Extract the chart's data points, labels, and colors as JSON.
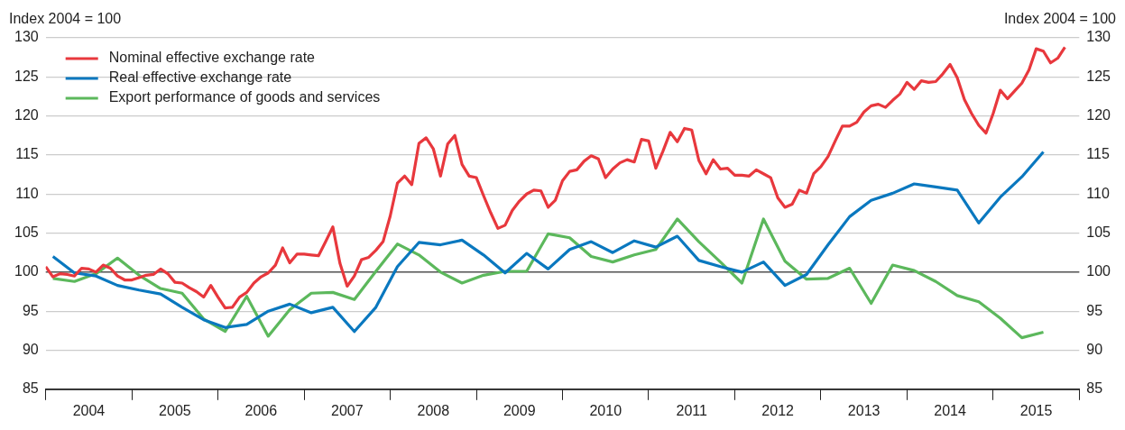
{
  "chart_data": {
    "type": "line",
    "ylabel": "Index 2004 = 100",
    "y2label": "Index 2004 = 100",
    "xlim": [
      "2004-01",
      "2016-01"
    ],
    "xticks": [
      {
        "value": "2004-01",
        "label": null
      },
      {
        "value": "2004-07",
        "label": "2004"
      },
      {
        "value": "2005-01",
        "label": null
      },
      {
        "value": "2005-07",
        "label": "2005"
      },
      {
        "value": "2006-01",
        "label": null
      },
      {
        "value": "2006-07",
        "label": "2006"
      },
      {
        "value": "2007-01",
        "label": null
      },
      {
        "value": "2007-07",
        "label": "2007"
      },
      {
        "value": "2008-01",
        "label": null
      },
      {
        "value": "2008-07",
        "label": "2008"
      },
      {
        "value": "2009-01",
        "label": null
      },
      {
        "value": "2009-07",
        "label": "2009"
      },
      {
        "value": "2010-01",
        "label": null
      },
      {
        "value": "2010-07",
        "label": "2010"
      },
      {
        "value": "2011-01",
        "label": null
      },
      {
        "value": "2011-07",
        "label": "2011"
      },
      {
        "value": "2012-01",
        "label": null
      },
      {
        "value": "2012-07",
        "label": "2012"
      },
      {
        "value": "2013-01",
        "label": null
      },
      {
        "value": "2013-07",
        "label": "2013"
      },
      {
        "value": "2014-01",
        "label": null
      },
      {
        "value": "2014-07",
        "label": "2014"
      },
      {
        "value": "2015-01",
        "label": null
      },
      {
        "value": "2015-07",
        "label": "2015"
      },
      {
        "value": "2016-01",
        "label": null
      }
    ],
    "ylim": [
      85,
      130
    ],
    "yticks": [
      85,
      90,
      95,
      100,
      105,
      110,
      115,
      120,
      125,
      130
    ],
    "y2lim": [
      85,
      130
    ],
    "y2ticks": [
      85,
      90,
      95,
      100,
      105,
      110,
      115,
      120,
      125,
      130
    ],
    "grid": "y",
    "legend": "top left",
    "marker": "none",
    "line_style": "solid",
    "ref_lines": [
      {
        "axis": "y",
        "value": 100,
        "color": "#555555"
      }
    ],
    "series": [
      {
        "name": "Nominal effective exchange rate",
        "color": "#e8383d",
        "x": [
          "2004-01",
          "2004-02",
          "2004-03",
          "2004-04",
          "2004-05",
          "2004-06",
          "2004-07",
          "2004-08",
          "2004-09",
          "2004-10",
          "2004-11",
          "2004-12",
          "2005-01",
          "2005-02",
          "2005-03",
          "2005-04",
          "2005-05",
          "2005-06",
          "2005-07",
          "2005-08",
          "2005-09",
          "2005-10",
          "2005-11",
          "2005-12",
          "2006-01",
          "2006-02",
          "2006-03",
          "2006-04",
          "2006-05",
          "2006-06",
          "2006-07",
          "2006-08",
          "2006-09",
          "2006-10",
          "2006-11",
          "2006-12",
          "2007-01",
          "2007-02",
          "2007-03",
          "2007-04",
          "2007-05",
          "2007-06",
          "2007-07",
          "2007-08",
          "2007-09",
          "2007-10",
          "2007-11",
          "2007-12",
          "2008-01",
          "2008-02",
          "2008-03",
          "2008-04",
          "2008-05",
          "2008-06",
          "2008-07",
          "2008-08",
          "2008-09",
          "2008-10",
          "2008-11",
          "2008-12",
          "2009-01",
          "2009-02",
          "2009-03",
          "2009-04",
          "2009-05",
          "2009-06",
          "2009-07",
          "2009-08",
          "2009-09",
          "2009-10",
          "2009-11",
          "2009-12",
          "2010-01",
          "2010-02",
          "2010-03",
          "2010-04",
          "2010-05",
          "2010-06",
          "2010-07",
          "2010-08",
          "2010-09",
          "2010-10",
          "2010-11",
          "2010-12",
          "2011-01",
          "2011-02",
          "2011-03",
          "2011-04",
          "2011-05",
          "2011-06",
          "2011-07",
          "2011-08",
          "2011-09",
          "2011-10",
          "2011-11",
          "2011-12",
          "2012-01",
          "2012-02",
          "2012-03",
          "2012-04",
          "2012-05",
          "2012-06",
          "2012-07",
          "2012-08",
          "2012-09",
          "2012-10",
          "2012-11",
          "2012-12",
          "2013-01",
          "2013-02",
          "2013-03",
          "2013-04",
          "2013-05",
          "2013-06",
          "2013-07",
          "2013-08",
          "2013-09",
          "2013-10",
          "2013-11",
          "2013-12",
          "2014-01",
          "2014-02",
          "2014-03",
          "2014-04",
          "2014-05",
          "2014-06",
          "2014-07",
          "2014-08",
          "2014-09",
          "2014-10",
          "2014-11",
          "2014-12",
          "2015-01",
          "2015-02",
          "2015-03",
          "2015-04",
          "2015-05",
          "2015-06",
          "2015-07",
          "2015-08",
          "2015-09",
          "2015-10",
          "2015-11"
        ],
        "values": [
          100.7,
          99.4,
          99.8,
          99.7,
          99.5,
          100.5,
          100.4,
          100.0,
          100.9,
          100.5,
          99.5,
          99.0,
          99.0,
          99.3,
          99.6,
          99.7,
          100.4,
          99.8,
          98.7,
          98.6,
          98.0,
          97.5,
          96.8,
          98.3,
          96.8,
          95.4,
          95.5,
          96.8,
          97.4,
          98.6,
          99.4,
          99.9,
          100.9,
          103.1,
          101.2,
          102.3,
          102.3,
          102.2,
          102.1,
          103.9,
          105.8,
          101.1,
          98.2,
          99.5,
          101.6,
          101.9,
          102.8,
          103.9,
          107.2,
          111.4,
          112.3,
          111.2,
          116.5,
          117.2,
          115.8,
          112.3,
          116.4,
          117.5,
          113.8,
          112.3,
          112.1,
          109.8,
          107.6,
          105.6,
          106.0,
          107.9,
          109.1,
          110.0,
          110.5,
          110.4,
          108.3,
          109.2,
          111.7,
          112.9,
          113.1,
          114.2,
          114.9,
          114.5,
          112.1,
          113.2,
          114.0,
          114.4,
          114.1,
          117.0,
          116.8,
          113.3,
          115.5,
          117.9,
          116.7,
          118.4,
          118.2,
          114.3,
          112.6,
          114.4,
          113.2,
          113.3,
          112.4,
          112.4,
          112.3,
          113.1,
          112.6,
          112.1,
          109.5,
          108.3,
          108.7,
          110.5,
          110.1,
          112.6,
          113.5,
          114.8,
          116.8,
          118.7,
          118.7,
          119.2,
          120.5,
          121.3,
          121.5,
          121.1,
          122.0,
          122.8,
          124.3,
          123.4,
          124.5,
          124.3,
          124.4,
          125.4,
          126.6,
          124.9,
          122.1,
          120.3,
          118.8,
          117.8,
          120.3,
          123.3,
          122.2,
          123.2,
          124.2,
          125.9,
          128.6,
          128.3,
          126.8,
          127.4,
          128.8
        ]
      },
      {
        "name": "Real effective exchange rate",
        "color": "#0a78bf",
        "x": [
          "2004-02",
          "2004-05",
          "2004-08",
          "2004-11",
          "2005-02",
          "2005-05",
          "2005-08",
          "2005-11",
          "2006-02",
          "2006-05",
          "2006-08",
          "2006-11",
          "2007-02",
          "2007-05",
          "2007-08",
          "2007-11",
          "2008-02",
          "2008-05",
          "2008-08",
          "2008-11",
          "2009-02",
          "2009-05",
          "2009-08",
          "2009-11",
          "2010-02",
          "2010-05",
          "2010-08",
          "2010-11",
          "2011-02",
          "2011-05",
          "2011-08",
          "2011-11",
          "2012-02",
          "2012-05",
          "2012-08",
          "2012-11",
          "2013-02",
          "2013-05",
          "2013-08",
          "2013-11",
          "2014-02",
          "2014-05",
          "2014-08",
          "2014-11",
          "2015-02",
          "2015-05",
          "2015-08"
        ],
        "values": [
          102.0,
          99.9,
          99.5,
          98.3,
          97.7,
          97.2,
          95.5,
          93.9,
          92.9,
          93.3,
          95.0,
          95.9,
          94.8,
          95.5,
          92.4,
          95.5,
          100.7,
          103.8,
          103.5,
          104.1,
          102.2,
          99.9,
          102.4,
          100.4,
          102.9,
          103.9,
          102.5,
          104.0,
          103.2,
          104.6,
          101.5,
          100.7,
          100.0,
          101.3,
          98.3,
          99.7,
          103.5,
          107.1,
          109.2,
          110.1,
          111.3,
          110.9,
          110.5,
          106.3,
          109.6,
          112.2,
          115.4
        ]
      },
      {
        "name": "Export performance of goods and services",
        "color": "#5cb85c",
        "x": [
          "2004-02",
          "2004-05",
          "2004-08",
          "2004-11",
          "2005-02",
          "2005-05",
          "2005-08",
          "2005-11",
          "2006-02",
          "2006-05",
          "2006-08",
          "2006-11",
          "2007-02",
          "2007-05",
          "2007-08",
          "2007-11",
          "2008-02",
          "2008-05",
          "2008-08",
          "2008-11",
          "2009-02",
          "2009-05",
          "2009-08",
          "2009-11",
          "2010-02",
          "2010-05",
          "2010-08",
          "2010-11",
          "2011-02",
          "2011-05",
          "2011-08",
          "2011-11",
          "2012-02",
          "2012-05",
          "2012-08",
          "2012-11",
          "2013-02",
          "2013-05",
          "2013-08",
          "2013-11",
          "2014-02",
          "2014-05",
          "2014-08",
          "2014-11",
          "2015-02",
          "2015-05",
          "2015-08"
        ],
        "values": [
          99.2,
          98.8,
          99.8,
          101.8,
          99.6,
          97.9,
          97.3,
          94.0,
          92.4,
          96.9,
          91.8,
          95.2,
          97.3,
          97.4,
          96.5,
          100.1,
          103.6,
          102.2,
          100.0,
          98.6,
          99.6,
          100.1,
          100.1,
          104.9,
          104.4,
          102.0,
          101.3,
          102.2,
          102.9,
          106.8,
          103.9,
          101.3,
          98.6,
          106.8,
          101.4,
          99.1,
          99.2,
          100.5,
          96.0,
          100.9,
          100.2,
          98.8,
          97.0,
          96.2,
          94.1,
          91.6,
          92.3
        ]
      }
    ]
  }
}
